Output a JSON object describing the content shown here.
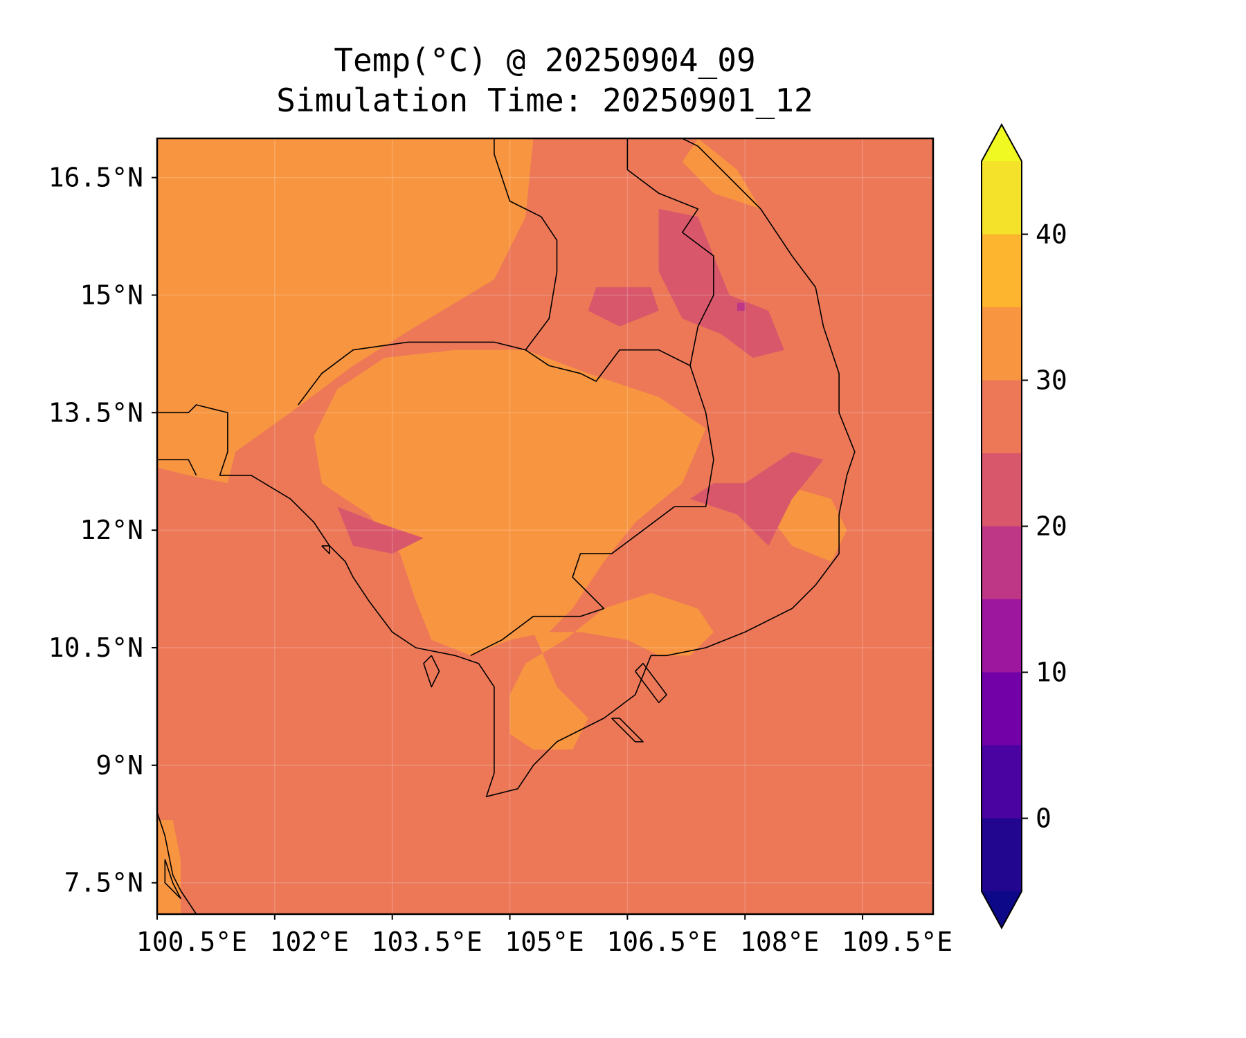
{
  "title_line1": "Temp(°C) @ 20250904_09",
  "title_line2": "Simulation Time: 20250901_12",
  "map": {
    "extent": {
      "lon": [
        100.5,
        110.4
      ],
      "lat": [
        7.1,
        17.0
      ]
    },
    "x_ticks": [
      {
        "value": 100.5,
        "label": "100.5°E"
      },
      {
        "value": 102.0,
        "label": "102°E"
      },
      {
        "value": 103.5,
        "label": "103.5°E"
      },
      {
        "value": 105.0,
        "label": "105°E"
      },
      {
        "value": 106.5,
        "label": "106.5°E"
      },
      {
        "value": 108.0,
        "label": "108°E"
      },
      {
        "value": 109.5,
        "label": "109.5°E"
      }
    ],
    "y_ticks": [
      {
        "value": 16.5,
        "label": "16.5°N"
      },
      {
        "value": 15.0,
        "label": "15°N"
      },
      {
        "value": 13.5,
        "label": "13.5°N"
      },
      {
        "value": 12.0,
        "label": "12°N"
      },
      {
        "value": 10.5,
        "label": "10.5°N"
      },
      {
        "value": 9.0,
        "label": "9°N"
      },
      {
        "value": 7.5,
        "label": "7.5°N"
      }
    ],
    "grid": true,
    "background_band": "25-30",
    "regions": [
      {
        "name": "thailand-lowland-warm",
        "band": "30-35",
        "points": [
          [
            100.5,
            17.0
          ],
          [
            105.3,
            17.0
          ],
          [
            105.2,
            16.0
          ],
          [
            104.8,
            15.2
          ],
          [
            104.3,
            14.9
          ],
          [
            103.8,
            14.6
          ],
          [
            103.0,
            14.1
          ],
          [
            102.2,
            13.5
          ],
          [
            101.5,
            13.0
          ],
          [
            101.4,
            12.6
          ],
          [
            100.9,
            12.7
          ],
          [
            100.5,
            12.8
          ]
        ]
      },
      {
        "name": "cambodia-plain-warm",
        "band": "30-35",
        "points": [
          [
            102.8,
            13.8
          ],
          [
            103.4,
            14.2
          ],
          [
            104.3,
            14.3
          ],
          [
            105.2,
            14.3
          ],
          [
            106.0,
            14.0
          ],
          [
            106.9,
            13.7
          ],
          [
            107.5,
            13.3
          ],
          [
            107.2,
            12.6
          ],
          [
            106.6,
            12.1
          ],
          [
            106.2,
            11.6
          ],
          [
            105.8,
            11.0
          ],
          [
            105.5,
            10.7
          ],
          [
            105.0,
            10.6
          ],
          [
            104.5,
            10.4
          ],
          [
            104.0,
            10.6
          ],
          [
            103.8,
            11.1
          ],
          [
            103.6,
            11.7
          ],
          [
            103.2,
            12.2
          ],
          [
            102.6,
            12.6
          ],
          [
            102.5,
            13.2
          ]
        ]
      },
      {
        "name": "mekong-delta-warm",
        "band": "30-35",
        "points": [
          [
            105.3,
            10.7
          ],
          [
            105.9,
            10.7
          ],
          [
            106.5,
            10.6
          ],
          [
            106.9,
            10.4
          ],
          [
            107.3,
            10.4
          ],
          [
            107.6,
            10.7
          ],
          [
            107.4,
            11.0
          ],
          [
            106.8,
            11.2
          ],
          [
            106.2,
            11.0
          ],
          [
            105.7,
            10.6
          ],
          [
            105.2,
            10.3
          ],
          [
            105.0,
            9.9
          ],
          [
            105.0,
            9.4
          ],
          [
            105.3,
            9.2
          ],
          [
            105.8,
            9.2
          ],
          [
            106.0,
            9.6
          ],
          [
            105.6,
            10.0
          ]
        ]
      },
      {
        "name": "central-coast-warm",
        "band": "30-35",
        "points": [
          [
            108.4,
            12.6
          ],
          [
            109.1,
            12.4
          ],
          [
            109.3,
            12.0
          ],
          [
            109.1,
            11.6
          ],
          [
            108.6,
            11.8
          ],
          [
            108.3,
            12.2
          ]
        ]
      },
      {
        "name": "laos-north-warm",
        "band": "30-35",
        "points": [
          [
            107.4,
            17.0
          ],
          [
            107.9,
            16.6
          ],
          [
            108.2,
            16.1
          ],
          [
            107.6,
            16.3
          ],
          [
            107.2,
            16.7
          ]
        ]
      },
      {
        "name": "south-tip-warm",
        "band": "30-35",
        "points": [
          [
            100.5,
            8.3
          ],
          [
            100.7,
            8.3
          ],
          [
            100.8,
            7.8
          ],
          [
            100.8,
            7.1
          ],
          [
            100.5,
            7.1
          ]
        ]
      },
      {
        "name": "laos-highland-cool",
        "band": "20-25",
        "points": [
          [
            106.9,
            16.1
          ],
          [
            107.4,
            16.0
          ],
          [
            107.6,
            15.5
          ],
          [
            107.8,
            15.0
          ],
          [
            108.3,
            14.8
          ],
          [
            108.5,
            14.3
          ],
          [
            108.1,
            14.2
          ],
          [
            107.7,
            14.5
          ],
          [
            107.2,
            14.7
          ],
          [
            106.9,
            15.3
          ]
        ]
      },
      {
        "name": "laos-plateau-cool",
        "band": "20-25",
        "points": [
          [
            106.1,
            15.1
          ],
          [
            106.8,
            15.1
          ],
          [
            106.9,
            14.8
          ],
          [
            106.4,
            14.6
          ],
          [
            106.0,
            14.8
          ]
        ]
      },
      {
        "name": "central-highland-cool",
        "band": "20-25",
        "points": [
          [
            107.3,
            12.4
          ],
          [
            107.9,
            12.2
          ],
          [
            108.3,
            11.8
          ],
          [
            108.6,
            12.4
          ],
          [
            109.0,
            12.9
          ],
          [
            108.6,
            13.0
          ],
          [
            108.0,
            12.6
          ],
          [
            107.6,
            12.6
          ]
        ]
      },
      {
        "name": "cardamom-cool",
        "band": "20-25",
        "points": [
          [
            102.8,
            12.3
          ],
          [
            103.3,
            12.1
          ],
          [
            103.9,
            11.9
          ],
          [
            103.5,
            11.7
          ],
          [
            103.0,
            11.8
          ]
        ]
      },
      {
        "name": "laos-peak-cooler",
        "band": "15-20",
        "points": [
          [
            107.9,
            14.9
          ],
          [
            108.0,
            14.9
          ],
          [
            108.0,
            14.8
          ],
          [
            107.9,
            14.8
          ]
        ]
      }
    ]
  },
  "colorbar": {
    "ticks": [
      {
        "value": 0,
        "label": "0"
      },
      {
        "value": 10,
        "label": "10"
      },
      {
        "value": 20,
        "label": "20"
      },
      {
        "value": 30,
        "label": "30"
      },
      {
        "value": 40,
        "label": "40"
      }
    ],
    "levels": [
      -5,
      0,
      5,
      10,
      15,
      20,
      25,
      30,
      35,
      40,
      45
    ],
    "under_color": "#0d0887",
    "over_color": "#f0f921",
    "band_colors": [
      "#23068f",
      "#4a03a0",
      "#7201a8",
      "#9c179e",
      "#bd3786",
      "#d8576b",
      "#ec7858",
      "#f89540",
      "#fdb42f",
      "#f3e12a"
    ]
  },
  "chart_data": {
    "type": "heatmap",
    "title": "Temp(°C) @ 20250904_09\nSimulation Time: 20250901_12",
    "x_range": [
      100.5,
      110.4
    ],
    "y_range": [
      7.1,
      17.0
    ],
    "xlabel": "",
    "ylabel": "",
    "color_levels": [
      -5,
      0,
      5,
      10,
      15,
      20,
      25,
      30,
      35,
      40,
      45
    ],
    "grid": true,
    "legend": "colorbar-right"
  }
}
